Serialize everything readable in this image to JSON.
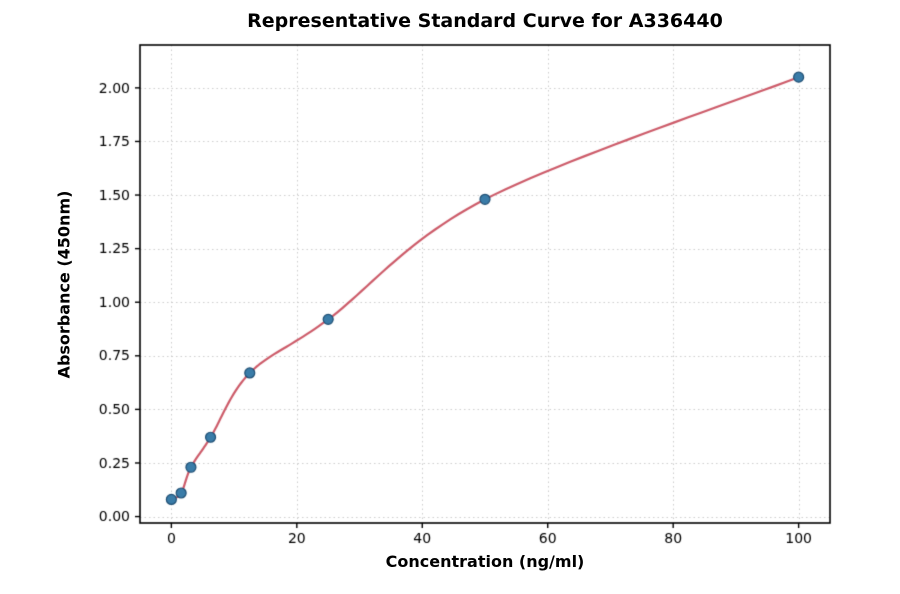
{
  "figure": {
    "background": "#ffffff"
  },
  "chart_data": {
    "type": "scatter",
    "title": "Representative Standard Curve for A336440",
    "xlabel": "Concentration (ng/ml)",
    "ylabel": "Absorbance (450nm)",
    "x": [
      0,
      1.56,
      3.12,
      6.25,
      12.5,
      25,
      50,
      100
    ],
    "y": [
      0.08,
      0.11,
      0.23,
      0.37,
      0.67,
      0.92,
      1.48,
      2.05
    ],
    "fit_curve": true,
    "xticks": [
      0,
      20,
      40,
      60,
      80,
      100
    ],
    "xtick_labels": [
      "0",
      "20",
      "40",
      "60",
      "80",
      "100"
    ],
    "yticks": [
      0,
      0.25,
      0.5,
      0.75,
      1.0,
      1.25,
      1.5,
      1.75,
      2.0
    ],
    "ytick_labels": [
      "0.00",
      "0.25",
      "0.50",
      "0.75",
      "1.00",
      "1.25",
      "1.50",
      "1.75",
      "2.00"
    ],
    "xlim": [
      -5,
      105
    ],
    "ylim": [
      -0.03,
      2.2
    ],
    "grid": true,
    "legend": "none",
    "colors": {
      "point_fill": "#3a7ca8",
      "point_edge": "#1e4e73",
      "curve": "#cd5c6a",
      "grid": "#cccccc",
      "axis": "#000000",
      "tick_text": "#000000"
    }
  }
}
